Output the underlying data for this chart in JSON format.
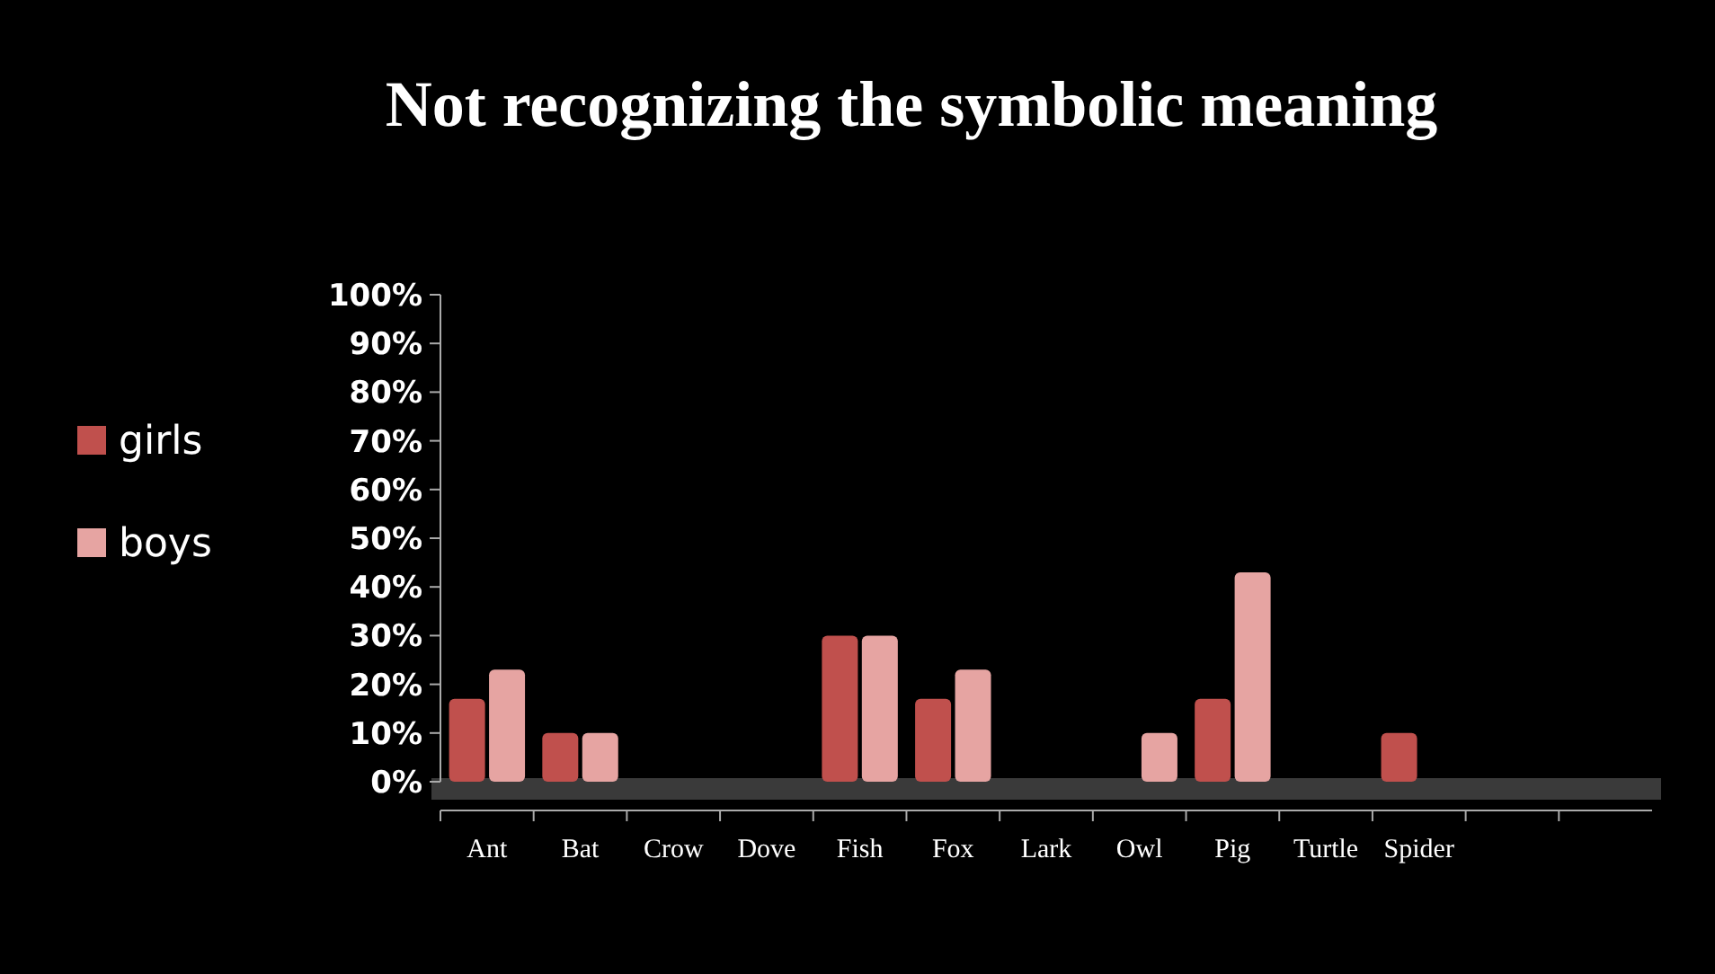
{
  "chart_data": {
    "type": "bar",
    "title": "Not recognizing the symbolic meaning",
    "categories": [
      "Ant",
      "Bat",
      "Crow",
      "Dove",
      "Fish",
      "Fox",
      "Lark",
      "Owl",
      "Pig",
      "Turtle",
      "Spider",
      null,
      null
    ],
    "series": [
      {
        "name": "girls",
        "color": "#c0504d",
        "values": [
          17,
          10,
          0,
          0,
          30,
          17,
          0,
          0,
          17,
          0,
          10,
          null,
          null
        ]
      },
      {
        "name": "boys",
        "color": "#e6a4a2",
        "values": [
          23,
          10,
          0,
          0,
          30,
          23,
          0,
          10,
          43,
          0,
          0,
          null,
          null
        ]
      }
    ],
    "ylim": [
      0,
      100
    ],
    "yticks": [
      {
        "value": 0,
        "label": "0%"
      },
      {
        "value": 10,
        "label": "10%"
      },
      {
        "value": 20,
        "label": "20%"
      },
      {
        "value": 30,
        "label": "30%"
      },
      {
        "value": 40,
        "label": "40%"
      },
      {
        "value": 50,
        "label": "50%"
      },
      {
        "value": 60,
        "label": "60%"
      },
      {
        "value": 70,
        "label": "70%"
      },
      {
        "value": 80,
        "label": "80%"
      },
      {
        "value": 90,
        "label": "90%"
      },
      {
        "value": 100,
        "label": "100%"
      }
    ],
    "legend": "left",
    "grid": false
  }
}
